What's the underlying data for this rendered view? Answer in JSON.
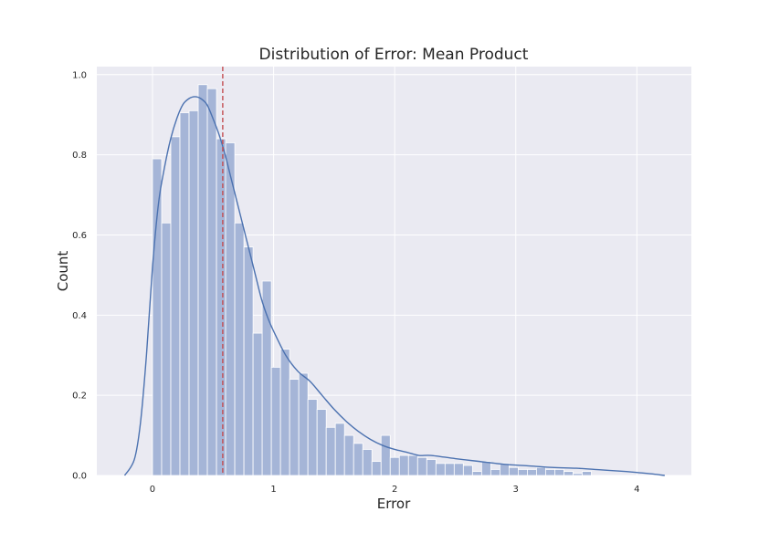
{
  "chart_data": {
    "type": "bar",
    "title": "Distribution of Error: Mean Product",
    "xlabel": "Error",
    "ylabel": "Count",
    "xlim": [
      -0.46,
      4.45
    ],
    "ylim": [
      0,
      1.02
    ],
    "grid": true,
    "xticks": [
      0,
      1,
      2,
      3,
      4
    ],
    "yticks": [
      0.0,
      0.2,
      0.4,
      0.6,
      0.8,
      1.0
    ],
    "bin_width": 0.0755,
    "bins_start": 0.0,
    "histogram_values": [
      0.79,
      0.63,
      0.845,
      0.905,
      0.91,
      0.975,
      0.965,
      0.84,
      0.83,
      0.63,
      0.57,
      0.355,
      0.485,
      0.27,
      0.315,
      0.24,
      0.255,
      0.19,
      0.165,
      0.12,
      0.13,
      0.1,
      0.08,
      0.065,
      0.035,
      0.1,
      0.045,
      0.05,
      0.05,
      0.045,
      0.04,
      0.03,
      0.03,
      0.03,
      0.025,
      0.01,
      0.035,
      0.015,
      0.03,
      0.02,
      0.015,
      0.015,
      0.02,
      0.015,
      0.015,
      0.01,
      0.005,
      0.01
    ],
    "kde_curve": {
      "x": [
        -0.23,
        -0.15,
        -0.1,
        -0.05,
        0.0,
        0.05,
        0.1,
        0.15,
        0.2,
        0.25,
        0.3,
        0.35,
        0.4,
        0.45,
        0.5,
        0.55,
        0.6,
        0.65,
        0.7,
        0.75,
        0.8,
        0.85,
        0.9,
        0.95,
        1.0,
        1.1,
        1.2,
        1.3,
        1.4,
        1.5,
        1.6,
        1.7,
        1.8,
        1.9,
        2.0,
        2.1,
        2.2,
        2.3,
        2.5,
        2.7,
        2.9,
        3.1,
        3.3,
        3.5,
        3.7,
        3.9,
        4.05,
        4.15,
        4.23
      ],
      "y": [
        0.0,
        0.04,
        0.13,
        0.3,
        0.52,
        0.68,
        0.77,
        0.84,
        0.89,
        0.925,
        0.94,
        0.945,
        0.94,
        0.925,
        0.89,
        0.85,
        0.8,
        0.74,
        0.68,
        0.62,
        0.56,
        0.5,
        0.44,
        0.395,
        0.36,
        0.3,
        0.26,
        0.235,
        0.2,
        0.165,
        0.135,
        0.11,
        0.09,
        0.075,
        0.065,
        0.058,
        0.05,
        0.05,
        0.042,
        0.035,
        0.028,
        0.024,
        0.02,
        0.018,
        0.014,
        0.01,
        0.006,
        0.003,
        0.0
      ]
    },
    "mean_line": {
      "x": 0.58,
      "color": "#c44e52",
      "style": "dashed"
    },
    "colors": {
      "background": "#eaeaf2",
      "grid": "#ffffff",
      "bar_fill": "#a5b5d7",
      "kde_line": "#4c72b0"
    }
  }
}
